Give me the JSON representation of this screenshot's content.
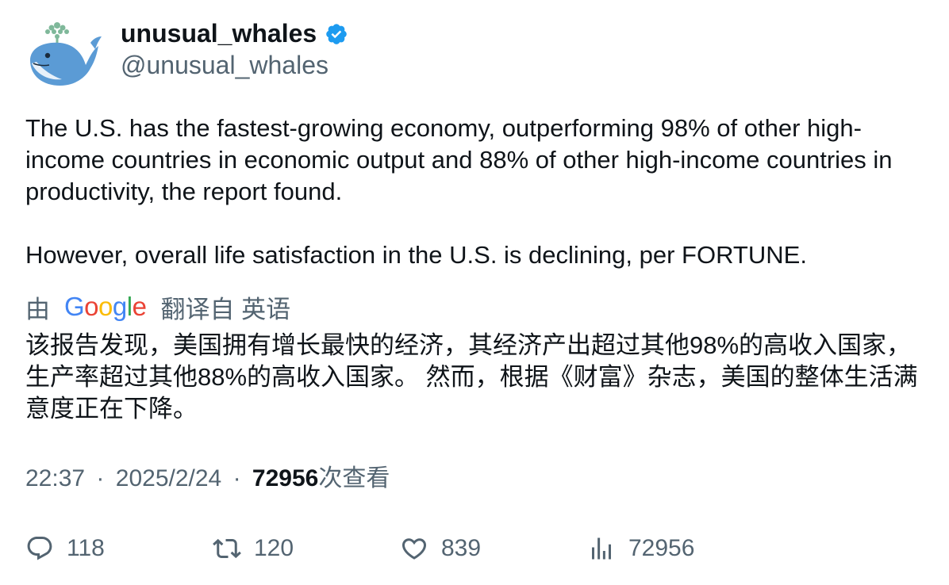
{
  "author": {
    "display_name": "unusual_whales",
    "handle": "@unusual_whales",
    "verified": true,
    "avatar_icon": "whale-logo-icon"
  },
  "tweet": {
    "paragraph_1": "The U.S. has the fastest-growing economy, outperforming 98% of other high-income countries in economic output and 88% of other high-income countries in productivity, the report found.",
    "paragraph_2": "However, overall life satisfaction in the U.S. is declining, per  FORTUNE."
  },
  "translation": {
    "prefix": "由",
    "provider": "Google",
    "suffix": "翻译自 英语",
    "text": "该报告发现，美国拥有增长最快的经济，其经济产出超过其他98%的高收入国家，生产率超过其他88%的高收入国家。 然而，根据《财富》杂志，美国的整体生活满意度正在下降。"
  },
  "meta": {
    "time": "22:37",
    "separator": "·",
    "date": "2025/2/24",
    "views_count": "72956",
    "views_label": "次查看"
  },
  "actions": {
    "replies": "118",
    "retweets": "120",
    "likes": "839",
    "views": "72956"
  },
  "colors": {
    "text": "#0f1419",
    "muted": "#536471",
    "verified_blue": "#1d9bf0",
    "google_blue": "#4285f4",
    "google_red": "#ea4335",
    "google_yellow": "#fbbc05",
    "google_green": "#34a853"
  }
}
